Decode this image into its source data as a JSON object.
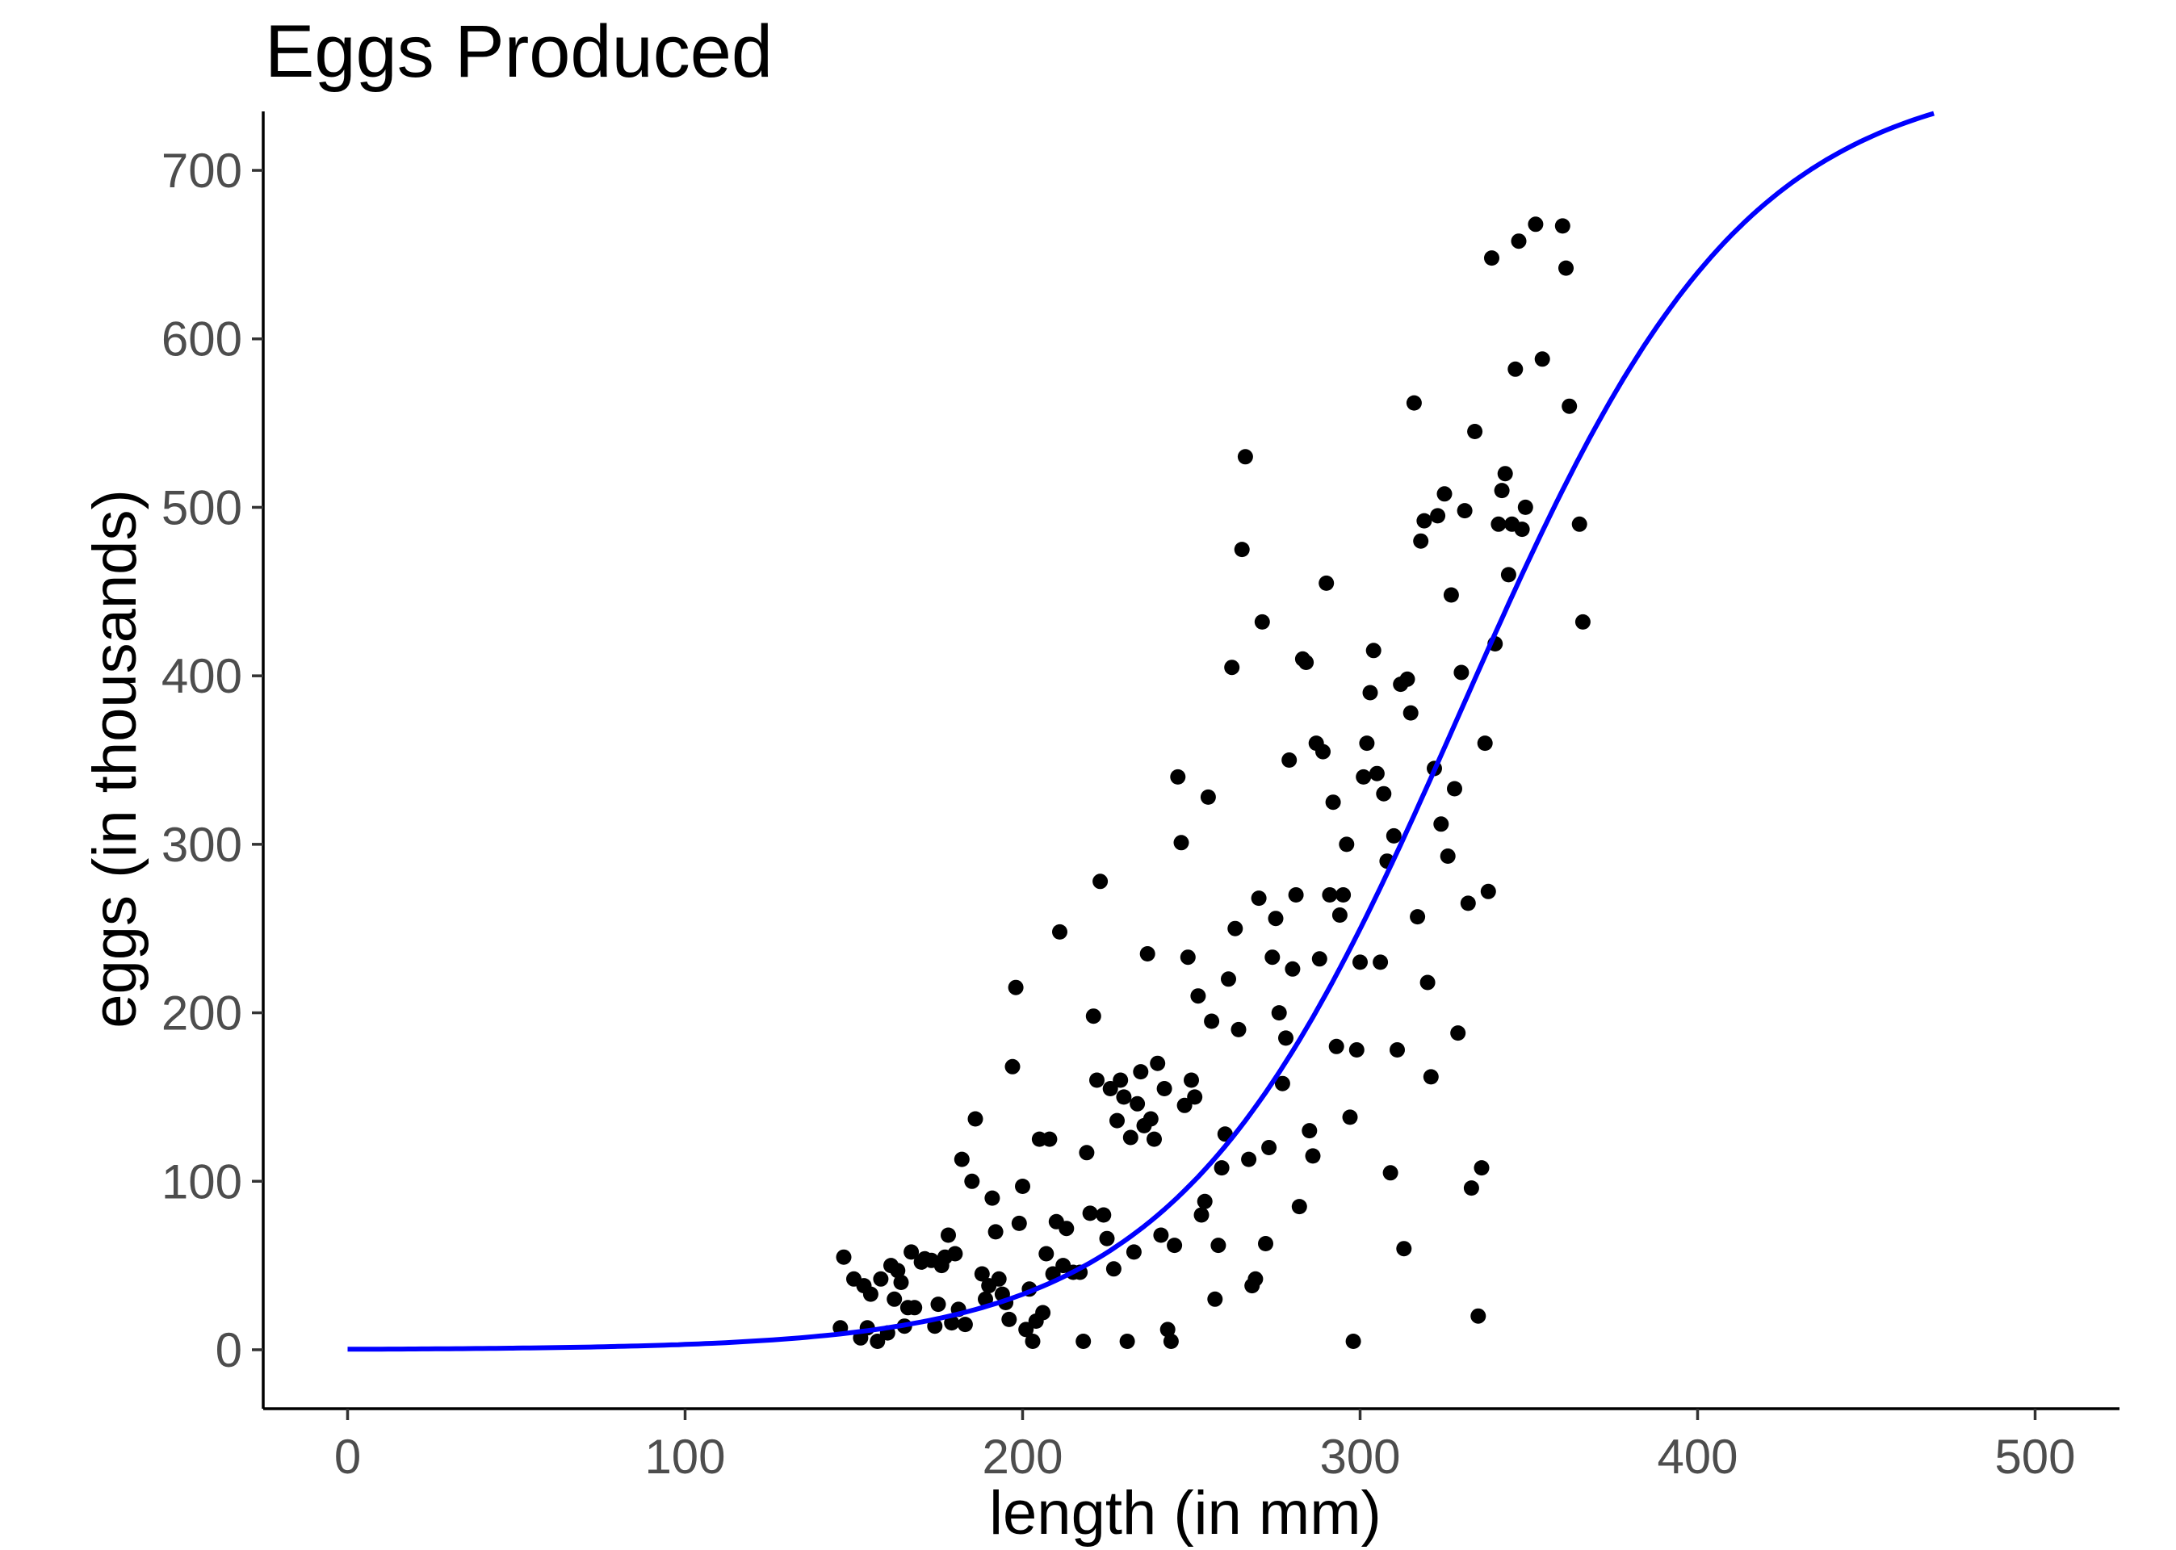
{
  "chart_data": {
    "type": "scatter",
    "title": "Eggs Produced",
    "xlabel": "length (in mm)",
    "ylabel": "eggs (in thousands)",
    "xlim": [
      -25,
      525
    ],
    "ylim": [
      -35,
      735
    ],
    "x_ticks": [
      0,
      100,
      200,
      300,
      400,
      500
    ],
    "y_ticks": [
      0,
      100,
      200,
      300,
      400,
      500,
      600,
      700
    ],
    "grid": false,
    "legend": "none",
    "colors": {
      "points": "#000000",
      "fit_line": "#0000ff",
      "axis": "#000000",
      "tick_label": "#4d4d4d"
    },
    "points": [
      [
        146,
        13
      ],
      [
        147,
        55
      ],
      [
        150,
        42
      ],
      [
        152,
        7
      ],
      [
        153,
        38
      ],
      [
        154,
        13
      ],
      [
        155,
        33
      ],
      [
        157,
        5
      ],
      [
        158,
        42
      ],
      [
        160,
        10
      ],
      [
        161,
        50
      ],
      [
        162,
        30
      ],
      [
        163,
        47
      ],
      [
        164,
        40
      ],
      [
        165,
        14
      ],
      [
        166,
        25
      ],
      [
        167,
        58
      ],
      [
        168,
        25
      ],
      [
        170,
        52
      ],
      [
        171,
        54
      ],
      [
        173,
        53
      ],
      [
        174,
        14
      ],
      [
        175,
        27
      ],
      [
        176,
        50
      ],
      [
        177,
        55
      ],
      [
        178,
        68
      ],
      [
        179,
        16
      ],
      [
        180,
        57
      ],
      [
        181,
        24
      ],
      [
        182,
        113
      ],
      [
        183,
        15
      ],
      [
        185,
        100
      ],
      [
        186,
        137
      ],
      [
        188,
        45
      ],
      [
        189,
        30
      ],
      [
        190,
        38
      ],
      [
        191,
        90
      ],
      [
        192,
        70
      ],
      [
        193,
        42
      ],
      [
        194,
        33
      ],
      [
        195,
        28
      ],
      [
        196,
        18
      ],
      [
        197,
        168
      ],
      [
        198,
        215
      ],
      [
        199,
        75
      ],
      [
        200,
        97
      ],
      [
        201,
        12
      ],
      [
        202,
        36
      ],
      [
        203,
        5
      ],
      [
        204,
        17
      ],
      [
        205,
        125
      ],
      [
        206,
        22
      ],
      [
        207,
        57
      ],
      [
        208,
        125
      ],
      [
        209,
        45
      ],
      [
        210,
        76
      ],
      [
        211,
        248
      ],
      [
        212,
        50
      ],
      [
        213,
        72
      ],
      [
        215,
        46
      ],
      [
        217,
        46
      ],
      [
        218,
        5
      ],
      [
        219,
        117
      ],
      [
        220,
        81
      ],
      [
        221,
        198
      ],
      [
        222,
        160
      ],
      [
        223,
        278
      ],
      [
        224,
        80
      ],
      [
        225,
        66
      ],
      [
        226,
        155
      ],
      [
        227,
        48
      ],
      [
        228,
        136
      ],
      [
        229,
        160
      ],
      [
        230,
        150
      ],
      [
        231,
        5
      ],
      [
        232,
        126
      ],
      [
        233,
        58
      ],
      [
        234,
        146
      ],
      [
        235,
        165
      ],
      [
        236,
        133
      ],
      [
        237,
        235
      ],
      [
        238,
        137
      ],
      [
        239,
        125
      ],
      [
        240,
        170
      ],
      [
        241,
        68
      ],
      [
        242,
        155
      ],
      [
        243,
        12
      ],
      [
        244,
        5
      ],
      [
        245,
        62
      ],
      [
        246,
        340
      ],
      [
        247,
        301
      ],
      [
        248,
        145
      ],
      [
        249,
        233
      ],
      [
        250,
        160
      ],
      [
        251,
        150
      ],
      [
        252,
        210
      ],
      [
        253,
        80
      ],
      [
        254,
        88
      ],
      [
        255,
        328
      ],
      [
        256,
        195
      ],
      [
        257,
        30
      ],
      [
        258,
        62
      ],
      [
        259,
        108
      ],
      [
        260,
        128
      ],
      [
        261,
        220
      ],
      [
        262,
        405
      ],
      [
        263,
        250
      ],
      [
        264,
        190
      ],
      [
        265,
        475
      ],
      [
        266,
        530
      ],
      [
        267,
        113
      ],
      [
        268,
        38
      ],
      [
        269,
        42
      ],
      [
        270,
        268
      ],
      [
        271,
        432
      ],
      [
        272,
        63
      ],
      [
        273,
        120
      ],
      [
        274,
        233
      ],
      [
        275,
        256
      ],
      [
        276,
        200
      ],
      [
        277,
        158
      ],
      [
        278,
        185
      ],
      [
        279,
        350
      ],
      [
        280,
        226
      ],
      [
        281,
        270
      ],
      [
        282,
        85
      ],
      [
        283,
        410
      ],
      [
        284,
        408
      ],
      [
        285,
        130
      ],
      [
        286,
        115
      ],
      [
        287,
        360
      ],
      [
        288,
        232
      ],
      [
        289,
        355
      ],
      [
        290,
        455
      ],
      [
        291,
        270
      ],
      [
        292,
        325
      ],
      [
        293,
        180
      ],
      [
        294,
        258
      ],
      [
        295,
        270
      ],
      [
        296,
        300
      ],
      [
        297,
        138
      ],
      [
        298,
        5
      ],
      [
        299,
        178
      ],
      [
        300,
        230
      ],
      [
        301,
        340
      ],
      [
        302,
        360
      ],
      [
        303,
        390
      ],
      [
        304,
        415
      ],
      [
        305,
        342
      ],
      [
        306,
        230
      ],
      [
        307,
        330
      ],
      [
        308,
        290
      ],
      [
        309,
        105
      ],
      [
        310,
        305
      ],
      [
        311,
        178
      ],
      [
        312,
        395
      ],
      [
        313,
        60
      ],
      [
        314,
        398
      ],
      [
        315,
        378
      ],
      [
        316,
        562
      ],
      [
        317,
        257
      ],
      [
        318,
        480
      ],
      [
        319,
        492
      ],
      [
        320,
        218
      ],
      [
        321,
        162
      ],
      [
        322,
        345
      ],
      [
        323,
        495
      ],
      [
        324,
        312
      ],
      [
        325,
        508
      ],
      [
        326,
        293
      ],
      [
        327,
        448
      ],
      [
        328,
        333
      ],
      [
        329,
        188
      ],
      [
        330,
        402
      ],
      [
        331,
        498
      ],
      [
        332,
        265
      ],
      [
        333,
        96
      ],
      [
        334,
        545
      ],
      [
        335,
        20
      ],
      [
        336,
        108
      ],
      [
        337,
        360
      ],
      [
        338,
        272
      ],
      [
        339,
        648
      ],
      [
        340,
        419
      ],
      [
        341,
        490
      ],
      [
        342,
        510
      ],
      [
        343,
        520
      ],
      [
        344,
        460
      ],
      [
        345,
        490
      ],
      [
        346,
        582
      ],
      [
        347,
        658
      ],
      [
        348,
        487
      ],
      [
        349,
        500
      ],
      [
        352,
        668
      ],
      [
        354,
        588
      ],
      [
        360,
        667
      ],
      [
        361,
        642
      ],
      [
        362,
        560
      ],
      [
        365,
        490
      ],
      [
        366,
        432
      ]
    ],
    "fit_curve": {
      "type": "logistic",
      "x_start": 0,
      "x_end": 470,
      "asymptote": 760,
      "midpoint": 330,
      "scale": 42
    }
  }
}
